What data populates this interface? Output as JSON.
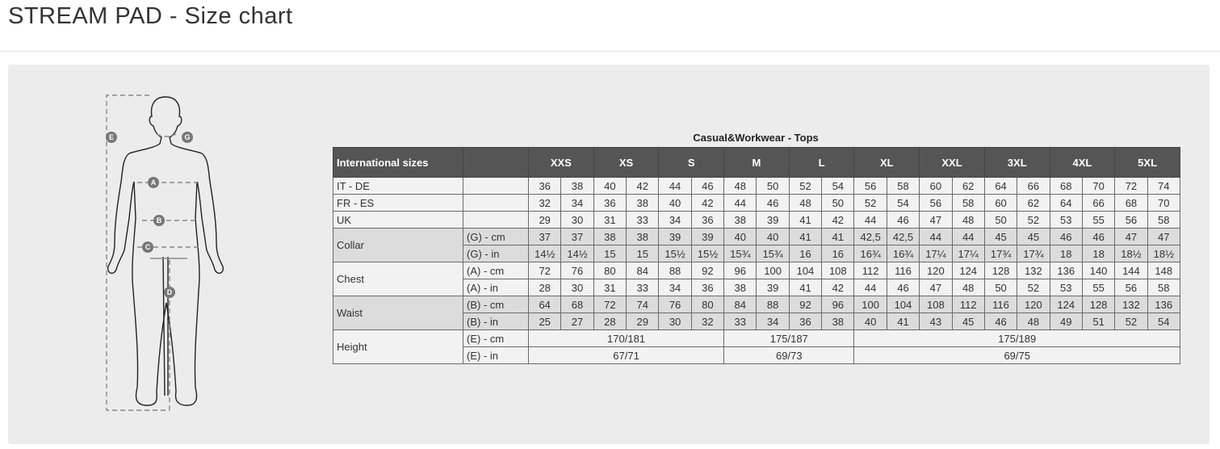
{
  "page": {
    "title": "STREAM PAD - Size chart"
  },
  "figure": {
    "markers": [
      "A",
      "B",
      "C",
      "D",
      "E",
      "G"
    ]
  },
  "table": {
    "caption": "Casual&Workwear - Tops",
    "header_label": "International sizes",
    "sizes": [
      "XXS",
      "XS",
      "S",
      "M",
      "L",
      "XL",
      "XXL",
      "3XL",
      "4XL",
      "5XL"
    ],
    "rows": [
      {
        "label": "IT - DE",
        "sub": "",
        "shade": "light",
        "values": [
          "36",
          "38",
          "40",
          "42",
          "44",
          "46",
          "48",
          "50",
          "52",
          "54",
          "56",
          "58",
          "60",
          "62",
          "64",
          "66",
          "68",
          "70",
          "72",
          "74"
        ]
      },
      {
        "label": "FR - ES",
        "sub": "",
        "shade": "light",
        "values": [
          "32",
          "34",
          "36",
          "38",
          "40",
          "42",
          "44",
          "46",
          "48",
          "50",
          "52",
          "54",
          "56",
          "58",
          "60",
          "62",
          "64",
          "66",
          "68",
          "70"
        ]
      },
      {
        "label": "UK",
        "sub": "",
        "shade": "light",
        "values": [
          "29",
          "30",
          "31",
          "33",
          "34",
          "36",
          "38",
          "39",
          "41",
          "42",
          "44",
          "46",
          "47",
          "48",
          "50",
          "52",
          "53",
          "55",
          "56",
          "58"
        ]
      }
    ],
    "groups": [
      {
        "label": "Collar",
        "shade": "dark",
        "rows": [
          {
            "sub": "(G) - cm",
            "values": [
              "37",
              "37",
              "38",
              "38",
              "39",
              "39",
              "40",
              "40",
              "41",
              "41",
              "42,5",
              "42,5",
              "44",
              "44",
              "45",
              "45",
              "46",
              "46",
              "47",
              "47"
            ]
          },
          {
            "sub": "(G)  - in",
            "values": [
              "14½",
              "14½",
              "15",
              "15",
              "15½",
              "15½",
              "15¾",
              "15¾",
              "16",
              "16",
              "16¾",
              "16¾",
              "17¼",
              "17¼",
              "17¾",
              "17¾",
              "18",
              "18",
              "18½",
              "18½"
            ]
          }
        ]
      },
      {
        "label": "Chest",
        "shade": "light",
        "rows": [
          {
            "sub": "(A) - cm",
            "values": [
              "72",
              "76",
              "80",
              "84",
              "88",
              "92",
              "96",
              "100",
              "104",
              "108",
              "112",
              "116",
              "120",
              "124",
              "128",
              "132",
              "136",
              "140",
              "144",
              "148"
            ]
          },
          {
            "sub": "(A) - in",
            "values": [
              "28",
              "30",
              "31",
              "33",
              "34",
              "36",
              "38",
              "39",
              "41",
              "42",
              "44",
              "46",
              "47",
              "48",
              "50",
              "52",
              "53",
              "55",
              "56",
              "58"
            ]
          }
        ]
      },
      {
        "label": "Waist",
        "shade": "dark",
        "rows": [
          {
            "sub": "(B) - cm",
            "values": [
              "64",
              "68",
              "72",
              "74",
              "76",
              "80",
              "84",
              "88",
              "92",
              "96",
              "100",
              "104",
              "108",
              "112",
              "116",
              "120",
              "124",
              "128",
              "132",
              "136"
            ]
          },
          {
            "sub": "(B) - in",
            "values": [
              "25",
              "27",
              "28",
              "29",
              "30",
              "32",
              "33",
              "34",
              "36",
              "38",
              "40",
              "41",
              "43",
              "45",
              "46",
              "48",
              "49",
              "51",
              "52",
              "54"
            ]
          }
        ]
      }
    ],
    "height": {
      "label": "Height",
      "rows": [
        {
          "sub": "(E) - cm",
          "spans": [
            {
              "value": "170/181",
              "cols": 6
            },
            {
              "value": "175/187",
              "cols": 4
            },
            {
              "value": "175/189",
              "cols": 10
            }
          ]
        },
        {
          "sub": "(E) - in",
          "spans": [
            {
              "value": "67/71",
              "cols": 6
            },
            {
              "value": "69/73",
              "cols": 4
            },
            {
              "value": "69/75",
              "cols": 10
            }
          ]
        }
      ]
    }
  }
}
